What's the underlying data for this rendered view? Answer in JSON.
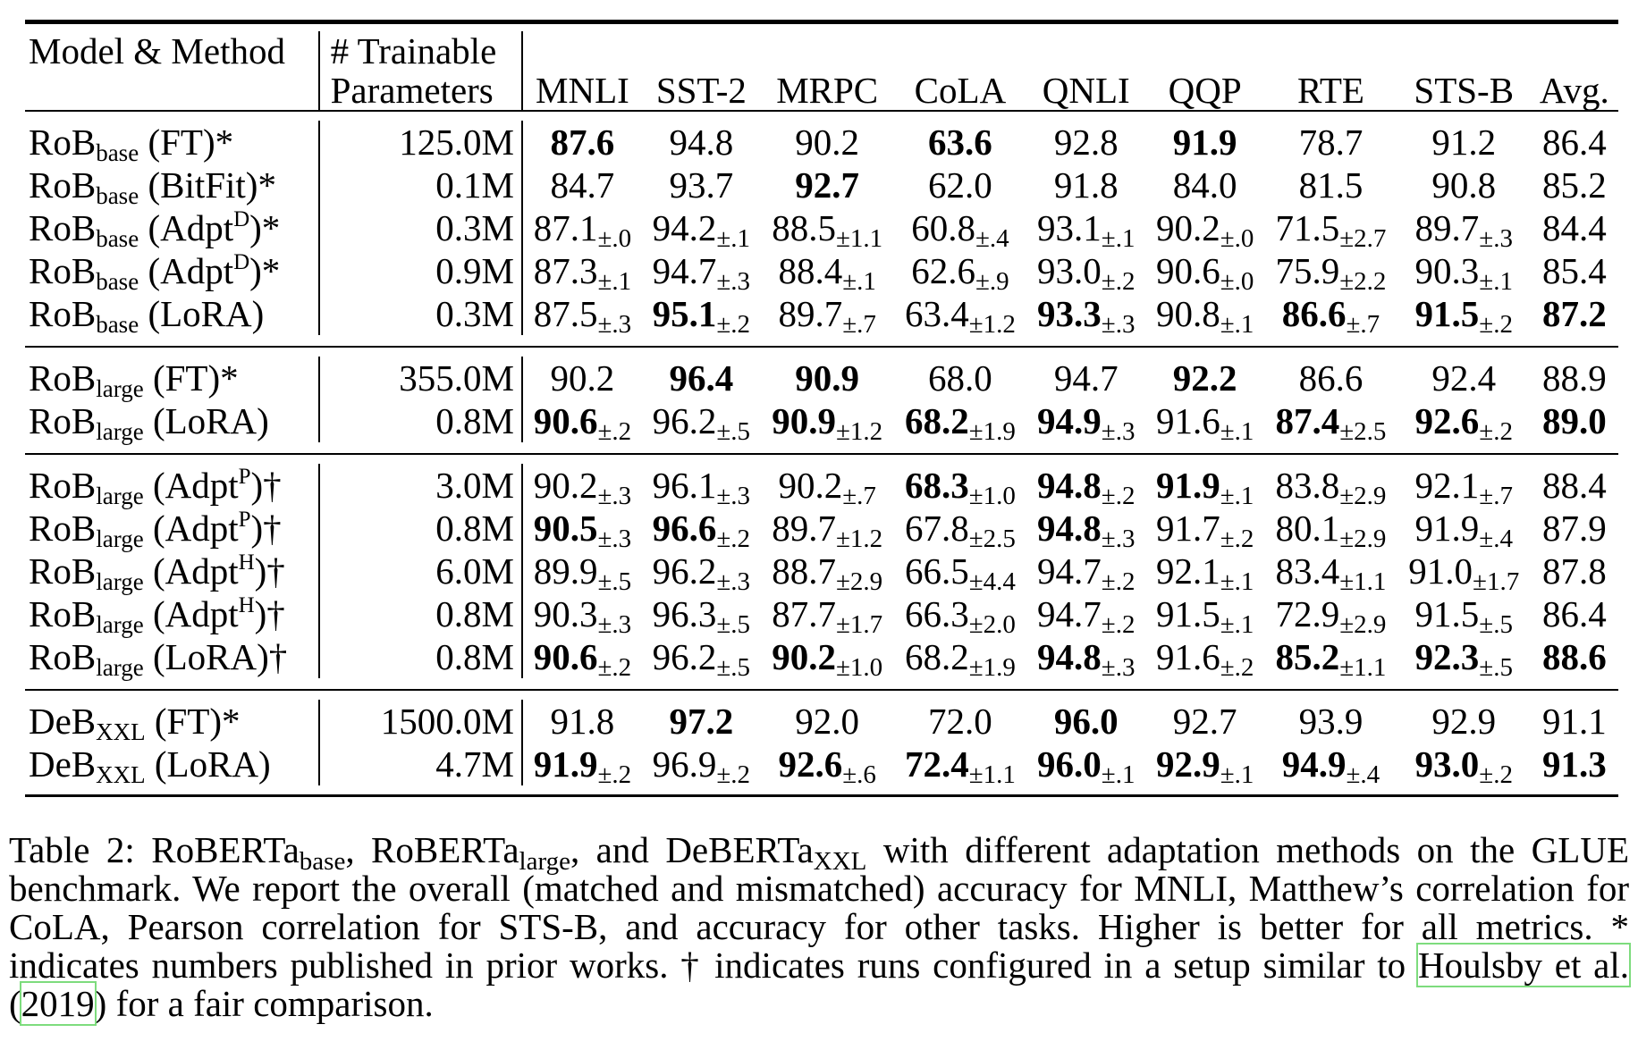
{
  "header": {
    "model_method": "Model & Method",
    "params_line1": "# Trainable",
    "params_line2": "Parameters",
    "columns": [
      "MNLI",
      "SST-2",
      "MRPC",
      "CoLA",
      "QNLI",
      "QQP",
      "RTE",
      "STS-B",
      "Avg."
    ]
  },
  "groups": [
    [
      {
        "base": "RoB",
        "sub": "base",
        "sup": "",
        "suffix": " (FT)*",
        "params": "125.0M",
        "cells": [
          {
            "v": "87.6",
            "b": true
          },
          {
            "v": "94.8"
          },
          {
            "v": "90.2"
          },
          {
            "v": "63.6",
            "b": true
          },
          {
            "v": "92.8"
          },
          {
            "v": "91.9",
            "b": true
          },
          {
            "v": "78.7"
          },
          {
            "v": "91.2"
          },
          {
            "v": "86.4"
          }
        ]
      },
      {
        "base": "RoB",
        "sub": "base",
        "sup": "",
        "suffix": " (BitFit)*",
        "params": "0.1M",
        "cells": [
          {
            "v": "84.7"
          },
          {
            "v": "93.7"
          },
          {
            "v": "92.7",
            "b": true
          },
          {
            "v": "62.0"
          },
          {
            "v": "91.8"
          },
          {
            "v": "84.0"
          },
          {
            "v": "81.5"
          },
          {
            "v": "90.8"
          },
          {
            "v": "85.2"
          }
        ]
      },
      {
        "base": "RoB",
        "sub": "base",
        "pre": " (Adpt",
        "sup": "D",
        "suffix": ")*",
        "params": "0.3M",
        "cells": [
          {
            "v": "87.1",
            "pm": "±.0"
          },
          {
            "v": "94.2",
            "pm": "±.1"
          },
          {
            "v": "88.5",
            "pm": "±1.1"
          },
          {
            "v": "60.8",
            "pm": "±.4"
          },
          {
            "v": "93.1",
            "pm": "±.1"
          },
          {
            "v": "90.2",
            "pm": "±.0"
          },
          {
            "v": "71.5",
            "pm": "±2.7"
          },
          {
            "v": "89.7",
            "pm": "±.3"
          },
          {
            "v": "84.4"
          }
        ]
      },
      {
        "base": "RoB",
        "sub": "base",
        "pre": " (Adpt",
        "sup": "D",
        "suffix": ")*",
        "params": "0.9M",
        "cells": [
          {
            "v": "87.3",
            "pm": "±.1"
          },
          {
            "v": "94.7",
            "pm": "±.3"
          },
          {
            "v": "88.4",
            "pm": "±.1"
          },
          {
            "v": "62.6",
            "pm": "±.9"
          },
          {
            "v": "93.0",
            "pm": "±.2"
          },
          {
            "v": "90.6",
            "pm": "±.0"
          },
          {
            "v": "75.9",
            "pm": "±2.2"
          },
          {
            "v": "90.3",
            "pm": "±.1"
          },
          {
            "v": "85.4"
          }
        ]
      },
      {
        "base": "RoB",
        "sub": "base",
        "sup": "",
        "suffix": " (LoRA)",
        "params": "0.3M",
        "cells": [
          {
            "v": "87.5",
            "pm": "±.3"
          },
          {
            "v": "95.1",
            "pm": "±.2",
            "b": true
          },
          {
            "v": "89.7",
            "pm": "±.7"
          },
          {
            "v": "63.4",
            "pm": "±1.2"
          },
          {
            "v": "93.3",
            "pm": "±.3",
            "b": true
          },
          {
            "v": "90.8",
            "pm": "±.1"
          },
          {
            "v": "86.6",
            "pm": "±.7",
            "b": true
          },
          {
            "v": "91.5",
            "pm": "±.2",
            "b": true
          },
          {
            "v": "87.2",
            "b": true
          }
        ]
      }
    ],
    [
      {
        "base": "RoB",
        "sub": "large",
        "sup": "",
        "suffix": " (FT)*",
        "params": "355.0M",
        "cells": [
          {
            "v": "90.2"
          },
          {
            "v": "96.4",
            "b": true
          },
          {
            "v": "90.9",
            "b": true
          },
          {
            "v": "68.0"
          },
          {
            "v": "94.7"
          },
          {
            "v": "92.2",
            "b": true
          },
          {
            "v": "86.6"
          },
          {
            "v": "92.4"
          },
          {
            "v": "88.9"
          }
        ]
      },
      {
        "base": "RoB",
        "sub": "large",
        "sup": "",
        "suffix": " (LoRA)",
        "params": "0.8M",
        "cells": [
          {
            "v": "90.6",
            "pm": "±.2",
            "b": true
          },
          {
            "v": "96.2",
            "pm": "±.5"
          },
          {
            "v": "90.9",
            "pm": "±1.2",
            "b": true
          },
          {
            "v": "68.2",
            "pm": "±1.9",
            "b": true
          },
          {
            "v": "94.9",
            "pm": "±.3",
            "b": true
          },
          {
            "v": "91.6",
            "pm": "±.1"
          },
          {
            "v": "87.4",
            "pm": "±2.5",
            "b": true
          },
          {
            "v": "92.6",
            "pm": "±.2",
            "b": true
          },
          {
            "v": "89.0",
            "b": true
          }
        ]
      }
    ],
    [
      {
        "base": "RoB",
        "sub": "large",
        "pre": " (Adpt",
        "sup": "P",
        "suffix": ")†",
        "params": "3.0M",
        "cells": [
          {
            "v": "90.2",
            "pm": "±.3"
          },
          {
            "v": "96.1",
            "pm": "±.3"
          },
          {
            "v": "90.2",
            "pm": "±.7"
          },
          {
            "v": "68.3",
            "pm": "±1.0",
            "b": true
          },
          {
            "v": "94.8",
            "pm": "±.2",
            "b": true
          },
          {
            "v": "91.9",
            "pm": "±.1",
            "b": true
          },
          {
            "v": "83.8",
            "pm": "±2.9"
          },
          {
            "v": "92.1",
            "pm": "±.7"
          },
          {
            "v": "88.4"
          }
        ]
      },
      {
        "base": "RoB",
        "sub": "large",
        "pre": " (Adpt",
        "sup": "P",
        "suffix": ")†",
        "params": "0.8M",
        "cells": [
          {
            "v": "90.5",
            "pm": "±.3",
            "b": true
          },
          {
            "v": "96.6",
            "pm": "±.2",
            "b": true
          },
          {
            "v": "89.7",
            "pm": "±1.2"
          },
          {
            "v": "67.8",
            "pm": "±2.5"
          },
          {
            "v": "94.8",
            "pm": "±.3",
            "b": true
          },
          {
            "v": "91.7",
            "pm": "±.2"
          },
          {
            "v": "80.1",
            "pm": "±2.9"
          },
          {
            "v": "91.9",
            "pm": "±.4"
          },
          {
            "v": "87.9"
          }
        ]
      },
      {
        "base": "RoB",
        "sub": "large",
        "pre": " (Adpt",
        "sup": "H",
        "suffix": ")†",
        "params": "6.0M",
        "cells": [
          {
            "v": "89.9",
            "pm": "±.5"
          },
          {
            "v": "96.2",
            "pm": "±.3"
          },
          {
            "v": "88.7",
            "pm": "±2.9"
          },
          {
            "v": "66.5",
            "pm": "±4.4"
          },
          {
            "v": "94.7",
            "pm": "±.2"
          },
          {
            "v": "92.1",
            "pm": "±.1"
          },
          {
            "v": "83.4",
            "pm": "±1.1"
          },
          {
            "v": "91.0",
            "pm": "±1.7"
          },
          {
            "v": "87.8"
          }
        ]
      },
      {
        "base": "RoB",
        "sub": "large",
        "pre": " (Adpt",
        "sup": "H",
        "suffix": ")†",
        "params": "0.8M",
        "cells": [
          {
            "v": "90.3",
            "pm": "±.3"
          },
          {
            "v": "96.3",
            "pm": "±.5"
          },
          {
            "v": "87.7",
            "pm": "±1.7"
          },
          {
            "v": "66.3",
            "pm": "±2.0"
          },
          {
            "v": "94.7",
            "pm": "±.2"
          },
          {
            "v": "91.5",
            "pm": "±.1"
          },
          {
            "v": "72.9",
            "pm": "±2.9"
          },
          {
            "v": "91.5",
            "pm": "±.5"
          },
          {
            "v": "86.4"
          }
        ]
      },
      {
        "base": "RoB",
        "sub": "large",
        "sup": "",
        "suffix": " (LoRA)†",
        "params": "0.8M",
        "cells": [
          {
            "v": "90.6",
            "pm": "±.2",
            "b": true
          },
          {
            "v": "96.2",
            "pm": "±.5"
          },
          {
            "v": "90.2",
            "pm": "±1.0",
            "b": true
          },
          {
            "v": "68.2",
            "pm": "±1.9"
          },
          {
            "v": "94.8",
            "pm": "±.3",
            "b": true
          },
          {
            "v": "91.6",
            "pm": "±.2"
          },
          {
            "v": "85.2",
            "pm": "±1.1",
            "b": true
          },
          {
            "v": "92.3",
            "pm": "±.5",
            "b": true
          },
          {
            "v": "88.6",
            "b": true
          }
        ]
      }
    ],
    [
      {
        "base": "DeB",
        "sub": "XXL",
        "sup": "",
        "suffix": " (FT)*",
        "params": "1500.0M",
        "cells": [
          {
            "v": "91.8"
          },
          {
            "v": "97.2",
            "b": true
          },
          {
            "v": "92.0"
          },
          {
            "v": "72.0"
          },
          {
            "v": "96.0",
            "b": true
          },
          {
            "v": "92.7"
          },
          {
            "v": "93.9"
          },
          {
            "v": "92.9"
          },
          {
            "v": "91.1"
          }
        ]
      },
      {
        "base": "DeB",
        "sub": "XXL",
        "sup": "",
        "suffix": " (LoRA)",
        "params": "4.7M",
        "cells": [
          {
            "v": "91.9",
            "pm": "±.2",
            "b": true
          },
          {
            "v": "96.9",
            "pm": "±.2"
          },
          {
            "v": "92.6",
            "pm": "±.6",
            "b": true
          },
          {
            "v": "72.4",
            "pm": "±1.1",
            "b": true
          },
          {
            "v": "96.0",
            "pm": "±.1",
            "b": true
          },
          {
            "v": "92.9",
            "pm": "±.1",
            "b": true
          },
          {
            "v": "94.9",
            "pm": "±.4",
            "b": true
          },
          {
            "v": "93.0",
            "pm": "±.2",
            "b": true
          },
          {
            "v": "91.3",
            "b": true
          }
        ]
      }
    ]
  ],
  "caption": {
    "p1": "Table 2: RoBERTa",
    "s1": "base",
    "p2": ", RoBERTa",
    "s2": "large",
    "p3": ", and DeBERTa",
    "s3": "XXL",
    "p4": " with different adaptation methods on the GLUE benchmark. We report the overall (matched and mismatched) accuracy for MNLI, Matthew’s correlation for CoLA, Pearson correlation for STS-B, and accuracy for other tasks. Higher is better for all metrics. * indicates numbers published in prior works. † indicates runs configured in a setup similar to ",
    "cite_author": "Houlsby et al.",
    "cite_open": " (",
    "cite_year": "2019",
    "cite_close": ")",
    "p5": " for a fair comparison."
  }
}
